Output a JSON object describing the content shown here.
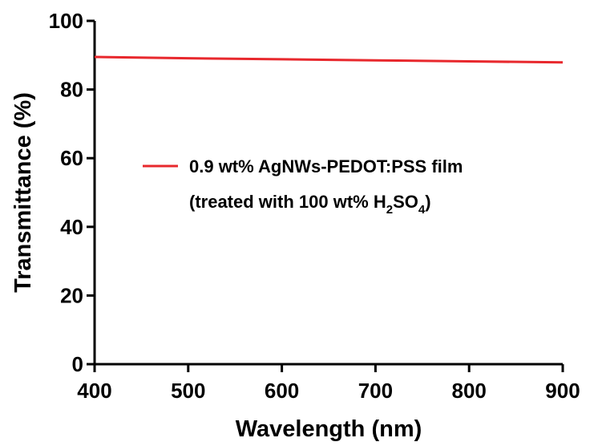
{
  "chart_data": {
    "type": "line",
    "xlabel": "Wavelength (nm)",
    "ylabel": "Transmittance (%)",
    "xlim": [
      400,
      900
    ],
    "ylim": [
      0,
      100
    ],
    "xticks": [
      400,
      500,
      600,
      700,
      800,
      900
    ],
    "yticks": [
      0,
      20,
      40,
      60,
      80,
      100
    ],
    "grid": false,
    "legend_position": "center-right",
    "series": [
      {
        "name": "0.9 wt% AgNWs-PEDOT:PSS film",
        "name_line2": {
          "before": "(treated with 100 wt% H",
          "sub1": "2",
          "middle": "SO",
          "sub2": "4",
          "after": ")"
        },
        "color": "#e8282d",
        "x": [
          400,
          500,
          600,
          700,
          800,
          900
        ],
        "y": [
          89.5,
          89.1,
          88.8,
          88.5,
          88.2,
          87.9
        ]
      }
    ]
  }
}
